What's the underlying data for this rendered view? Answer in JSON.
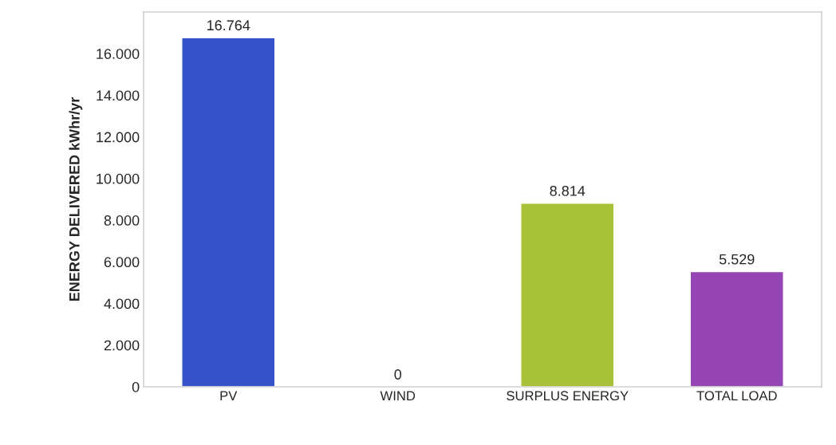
{
  "chart_data": {
    "type": "bar",
    "ylabel": "ENERGY DELIVERED kWhr/yr",
    "categories": [
      "PV",
      "WIND",
      "SURPLUS ENERGY",
      "TOTAL LOAD"
    ],
    "values": [
      16764,
      0,
      8814,
      5529
    ],
    "colors": [
      "#3553c9",
      null,
      "#a9c23a",
      "#9645b5"
    ],
    "value_labels": [
      "16.764",
      "0",
      "8.814",
      "5.529"
    ],
    "ylim": [
      0,
      18000
    ],
    "yticks": [
      {
        "value": 0,
        "label": "0"
      },
      {
        "value": 2000,
        "label": "2.000"
      },
      {
        "value": 4000,
        "label": "4.000"
      },
      {
        "value": 6000,
        "label": "6.000"
      },
      {
        "value": 8000,
        "label": "8.000"
      },
      {
        "value": 10000,
        "label": "10.000"
      },
      {
        "value": 12000,
        "label": "12.000"
      },
      {
        "value": 14000,
        "label": "14.000"
      },
      {
        "value": 16000,
        "label": "16.000"
      }
    ],
    "grid": false
  }
}
